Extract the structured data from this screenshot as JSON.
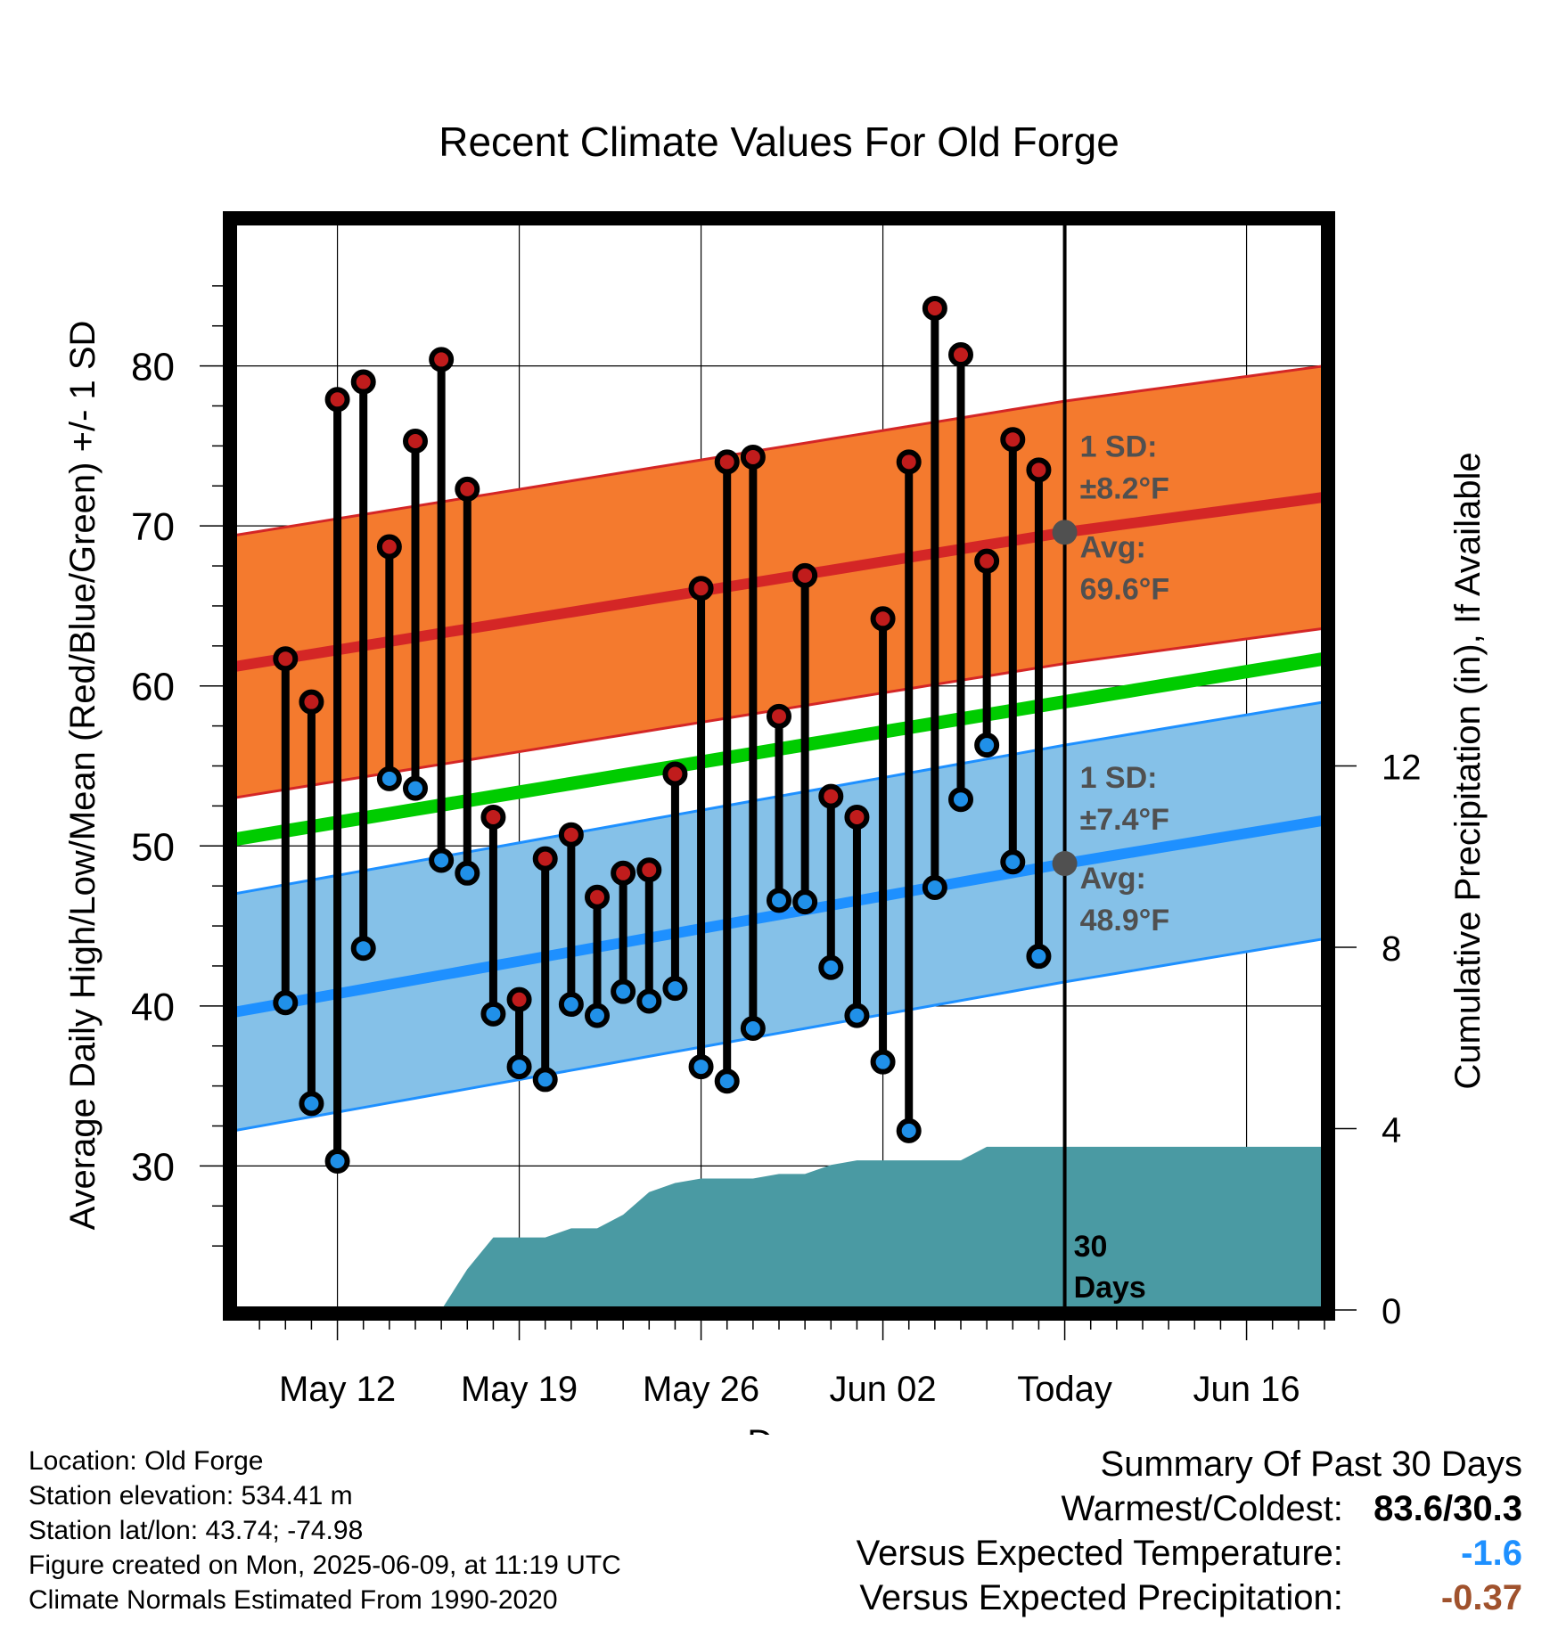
{
  "chart_data": {
    "type": "line",
    "title": "Recent Climate Values For Old Forge",
    "xlabel": "Day",
    "ylabel": "Average Daily High/Low/Mean (Red/Blue/Green) +/- 1 SD",
    "y2label": "Cumulative Precipitation (in), If Available",
    "x_range": [
      "2025-05-08",
      "2025-06-19"
    ],
    "ylim": [
      21,
      89
    ],
    "y_ticks": [
      30,
      40,
      50,
      60,
      70,
      80
    ],
    "y2lim": [
      0,
      24
    ],
    "y2_ticks": [
      0,
      4,
      8,
      12
    ],
    "x_ticks": [
      {
        "date": "2025-05-12",
        "label": "May 12"
      },
      {
        "date": "2025-05-19",
        "label": "May 19"
      },
      {
        "date": "2025-05-26",
        "label": "May 26"
      },
      {
        "date": "2025-06-02",
        "label": "Jun 02"
      },
      {
        "date": "2025-06-09",
        "label": "Today"
      },
      {
        "date": "2025-06-16",
        "label": "Jun 16"
      }
    ],
    "today": "2025-06-09",
    "period_label": [
      "30",
      "Days"
    ],
    "grid": true,
    "colors": {
      "high_band": "#f47a2e",
      "high_mean": "#d42626",
      "low_band": "#85c1e8",
      "low_mean": "#1e90ff",
      "mean_line": "#00cc00",
      "precip": "#4a9aa3",
      "high_point": "#c01c1c",
      "low_point": "#2090e8",
      "annotation": "#505050"
    },
    "normals_high": {
      "dates": [
        "2025-05-08",
        "2025-06-09",
        "2025-06-19"
      ],
      "mean": [
        61.2,
        69.6,
        71.8
      ],
      "sd": 8.2
    },
    "normals_low": {
      "dates": [
        "2025-05-08",
        "2025-06-09",
        "2025-06-19"
      ],
      "mean": [
        39.6,
        48.9,
        51.6
      ],
      "sd": 7.4
    },
    "normals_mean": {
      "dates": [
        "2025-05-08",
        "2025-06-19"
      ],
      "values": [
        50.4,
        61.7
      ]
    },
    "annotations": {
      "high_sd": "1 SD:",
      "high_sd_value": "±8.2°F",
      "high_avg": "Avg:",
      "high_avg_value": "69.6°F",
      "low_sd": "1 SD:",
      "low_sd_value": "±7.4°F",
      "low_avg": "Avg:",
      "low_avg_value": "48.9°F"
    },
    "daily": {
      "dates": [
        "2025-05-10",
        "2025-05-11",
        "2025-05-12",
        "2025-05-13",
        "2025-05-14",
        "2025-05-15",
        "2025-05-16",
        "2025-05-17",
        "2025-05-18",
        "2025-05-19",
        "2025-05-20",
        "2025-05-21",
        "2025-05-22",
        "2025-05-23",
        "2025-05-24",
        "2025-05-25",
        "2025-05-26",
        "2025-05-27",
        "2025-05-28",
        "2025-05-29",
        "2025-05-30",
        "2025-05-31",
        "2025-06-01",
        "2025-06-02",
        "2025-06-03",
        "2025-06-04",
        "2025-06-05",
        "2025-06-06",
        "2025-06-07",
        "2025-06-08"
      ],
      "high": [
        61.7,
        59.0,
        77.9,
        79.0,
        68.7,
        75.3,
        80.4,
        72.3,
        51.8,
        40.4,
        49.2,
        50.7,
        46.8,
        48.3,
        48.5,
        54.5,
        66.1,
        74.0,
        74.3,
        58.1,
        66.9,
        53.1,
        51.8,
        64.2,
        74.0,
        83.6,
        80.7,
        67.8,
        75.4,
        73.5
      ],
      "low": [
        40.2,
        33.9,
        30.3,
        43.6,
        54.2,
        53.6,
        49.1,
        48.3,
        39.5,
        36.2,
        35.4,
        40.1,
        39.4,
        40.9,
        40.3,
        41.1,
        36.2,
        35.3,
        38.6,
        46.6,
        46.5,
        42.4,
        39.4,
        36.5,
        32.2,
        47.4,
        52.9,
        56.3,
        49.0,
        43.1
      ]
    },
    "precip": {
      "dates": [
        "2025-05-15",
        "2025-05-16",
        "2025-05-17",
        "2025-05-18",
        "2025-05-19",
        "2025-05-20",
        "2025-05-21",
        "2025-05-22",
        "2025-05-23",
        "2025-05-24",
        "2025-05-25",
        "2025-05-26",
        "2025-05-27",
        "2025-05-28",
        "2025-05-29",
        "2025-05-30",
        "2025-05-31",
        "2025-06-01",
        "2025-06-02",
        "2025-06-03",
        "2025-06-04",
        "2025-06-05",
        "2025-06-06",
        "2025-06-07",
        "2025-06-08",
        "2025-06-09",
        "2025-06-19"
      ],
      "cumulative": [
        0.0,
        0.0,
        0.9,
        1.6,
        1.6,
        1.6,
        1.8,
        1.8,
        2.1,
        2.6,
        2.8,
        2.9,
        2.9,
        2.9,
        3.0,
        3.0,
        3.2,
        3.3,
        3.3,
        3.3,
        3.3,
        3.3,
        3.6,
        3.6,
        3.6,
        3.6,
        3.6
      ]
    }
  },
  "footer": {
    "location": "Location: Old Forge",
    "elevation": "Station elevation: 534.41 m",
    "latlon": "Station lat/lon: 43.74; -74.98",
    "created": "Figure created on Mon, 2025-06-09, at 11:19 UTC",
    "normals": "Climate Normals Estimated From 1990-2020"
  },
  "summary": {
    "title": "Summary Of Past 30 Days",
    "warmest_coldest_label": "Warmest/Coldest:",
    "warmest_coldest_value": "83.6/30.3",
    "temp_label": "Versus Expected Temperature:",
    "temp_value": "-1.6",
    "temp_color": "#1e90ff",
    "precip_label": "Versus Expected Precipitation:",
    "precip_value": "-0.37",
    "precip_color": "#a0522d"
  }
}
